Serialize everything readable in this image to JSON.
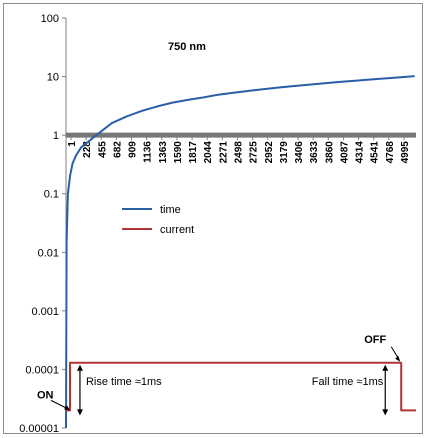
{
  "chart_data": {
    "type": "line",
    "title": "750 nm",
    "xlabel": "",
    "ylabel": "",
    "y_scale": "log",
    "ylim": [
      1e-05,
      100
    ],
    "y_ticks": [
      "100",
      "10",
      "1",
      "0.1",
      "0.01",
      "0.001",
      "0.0001",
      "0.00001"
    ],
    "x_tick_labels": [
      "1",
      "228",
      "455",
      "682",
      "909",
      "1136",
      "1363",
      "1590",
      "1817",
      "2044",
      "2271",
      "2498",
      "2725",
      "2952",
      "3179",
      "3406",
      "3633",
      "3860",
      "4087",
      "4314",
      "4541",
      "4768",
      "4995"
    ],
    "xlim": [
      1,
      5220
    ],
    "reference_line": {
      "y": 1,
      "color": "#777777"
    },
    "legend": {
      "placement": "center",
      "entries": [
        "time",
        "current"
      ]
    },
    "series": [
      {
        "name": "time",
        "color": "#2a5fa8",
        "x": [
          1,
          10,
          30,
          60,
          100,
          150,
          228,
          350,
          455,
          682,
          909,
          1136,
          1363,
          1590,
          1817,
          2044,
          2271,
          2498,
          2725,
          2952,
          3179,
          3406,
          3633,
          3860,
          4087,
          4314,
          4541,
          4768,
          4995,
          5200
        ],
        "y": [
          1e-05,
          0.015,
          0.1,
          0.2,
          0.33,
          0.45,
          0.62,
          0.8,
          1.0,
          1.6,
          2.1,
          2.6,
          3.1,
          3.6,
          4.0,
          4.4,
          4.9,
          5.3,
          5.7,
          6.1,
          6.5,
          6.9,
          7.3,
          7.7,
          8.1,
          8.5,
          8.9,
          9.3,
          9.7,
          10.2
        ]
      },
      {
        "name": "current",
        "color": "#b23535",
        "x": [
          1,
          60,
          60,
          5000,
          5000,
          5220
        ],
        "y": [
          2e-05,
          2e-05,
          0.00013,
          0.00013,
          2e-05,
          2e-05
        ]
      }
    ],
    "annotations": {
      "on_label": "ON",
      "off_label": "OFF",
      "rise_label": "Rise time ≈1ms",
      "fall_label": "Fall time ≈1ms"
    }
  }
}
